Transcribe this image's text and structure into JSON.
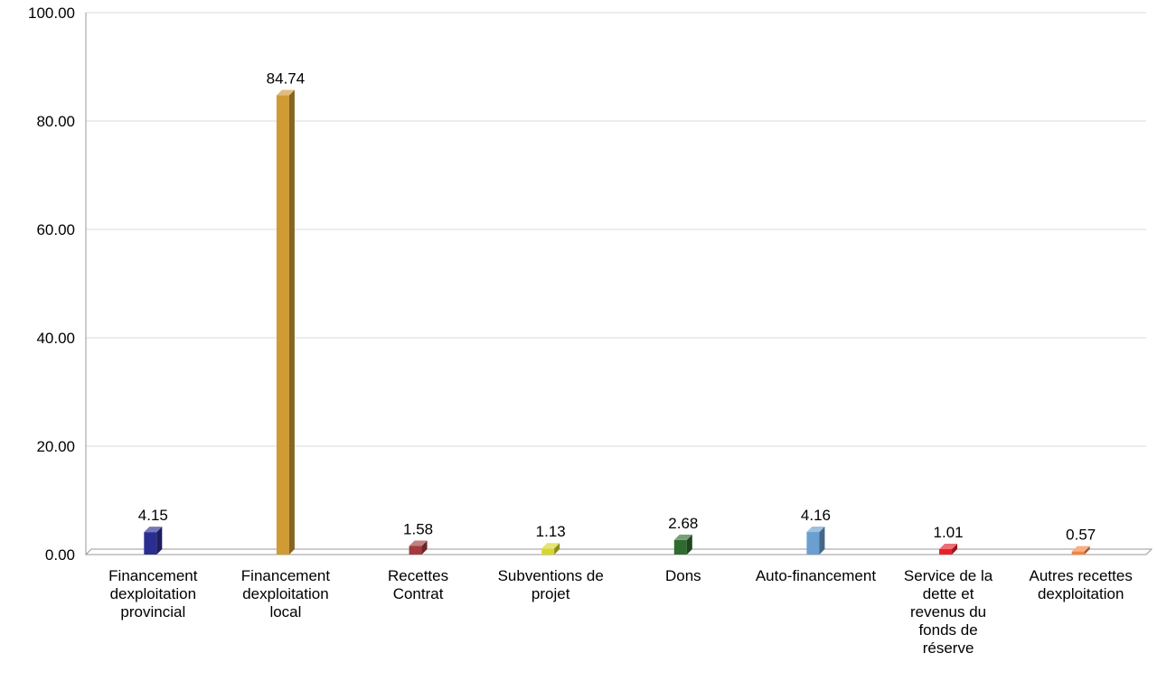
{
  "chart_data": {
    "type": "bar",
    "title": "",
    "xlabel": "",
    "ylabel": "",
    "ylim": [
      0,
      100
    ],
    "yticks": [
      0,
      20,
      40,
      60,
      80,
      100
    ],
    "ytick_labels": [
      "0.00",
      "20.00",
      "40.00",
      "60.00",
      "80.00",
      "100.00"
    ],
    "grid": true,
    "legend": "none",
    "categories": [
      "Financement dexploitation provincial",
      "Financement dexploitation local",
      "Recettes Contrat",
      "Subventions de projet",
      "Dons",
      "Auto-financement",
      "Service de la dette et revenus du fonds de réserve",
      "Autres recettes dexploitation"
    ],
    "category_label_lines": [
      [
        "Financement",
        "dexploitation",
        "provincial"
      ],
      [
        "Financement",
        "dexploitation",
        "local"
      ],
      [
        "Recettes",
        "Contrat"
      ],
      [
        "Subventions de",
        "projet"
      ],
      [
        "Dons"
      ],
      [
        "Auto-financement"
      ],
      [
        "Service de la",
        "dette et",
        "revenus du",
        "fonds de",
        "réserve"
      ],
      [
        "Autres recettes",
        "dexploitation"
      ]
    ],
    "values": [
      4.15,
      84.74,
      1.58,
      1.13,
      2.68,
      4.16,
      1.01,
      0.57
    ],
    "value_labels": [
      "4.15",
      "84.74",
      "1.58",
      "1.13",
      "2.68",
      "4.16",
      "1.01",
      "0.57"
    ],
    "colors": [
      "#2b2e91",
      "#d09a35",
      "#a33a3e",
      "#d6d62c",
      "#2f6b2f",
      "#6a9fd0",
      "#e8202c",
      "#f58241"
    ],
    "style": "3d-bar"
  }
}
